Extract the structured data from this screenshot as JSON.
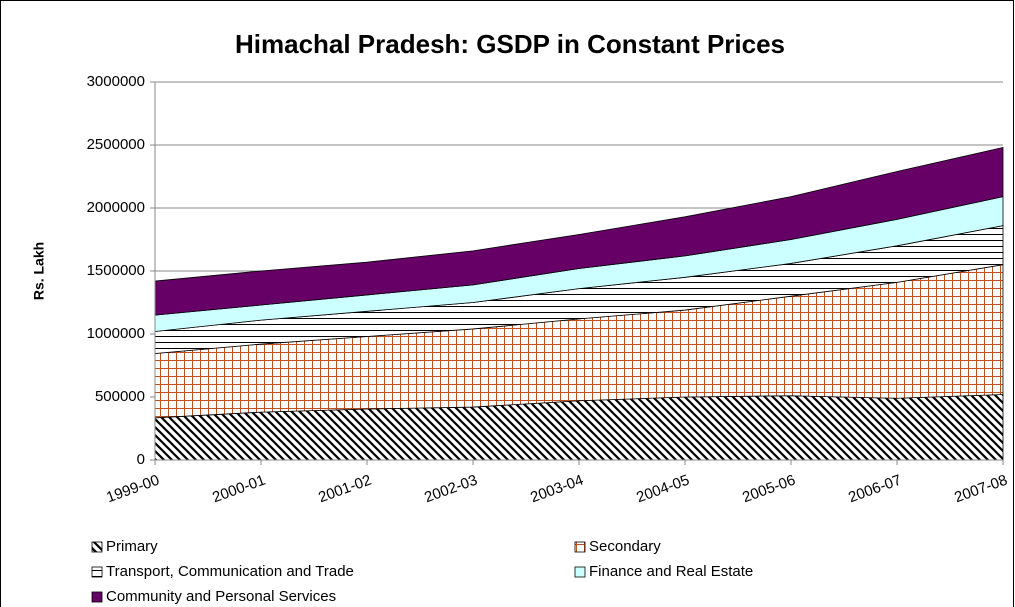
{
  "chart_data": {
    "type": "stacked_area",
    "title": "Himachal Pradesh: GSDP in Constant Prices",
    "y_label": "Rs. Lakh",
    "categories": [
      "1999-00",
      "2000-01",
      "2001-02",
      "2002-03",
      "2003-04",
      "2004-05",
      "2005-06",
      "2006-07",
      "2007-08"
    ],
    "series": [
      {
        "name": "Primary",
        "color": "#000000",
        "pattern": "diagonal",
        "values": [
          335000,
          380000,
          405000,
          420000,
          470000,
          500000,
          510000,
          490000,
          520000
        ]
      },
      {
        "name": "Secondary",
        "color": "#c0501e",
        "pattern": "grid",
        "values": [
          510000,
          540000,
          575000,
          620000,
          650000,
          690000,
          790000,
          920000,
          1030000
        ]
      },
      {
        "name": "Transport, Communication and Trade",
        "color": "#000000",
        "pattern": "horizontal",
        "values": [
          175000,
          190000,
          200000,
          210000,
          240000,
          260000,
          260000,
          290000,
          310000
        ]
      },
      {
        "name": "Finance and Real Estate",
        "color": "#ccffff",
        "pattern": "solid",
        "values": [
          130000,
          120000,
          130000,
          140000,
          160000,
          170000,
          190000,
          210000,
          230000
        ]
      },
      {
        "name": "Community and Personal Services",
        "color": "#660066",
        "pattern": "solid",
        "values": [
          270000,
          270000,
          260000,
          270000,
          270000,
          310000,
          340000,
          380000,
          390000
        ]
      }
    ],
    "ylim": [
      0,
      3000000
    ],
    "yticks": [
      0,
      500000,
      1000000,
      1500000,
      2000000,
      2500000,
      3000000
    ],
    "grid": true
  }
}
